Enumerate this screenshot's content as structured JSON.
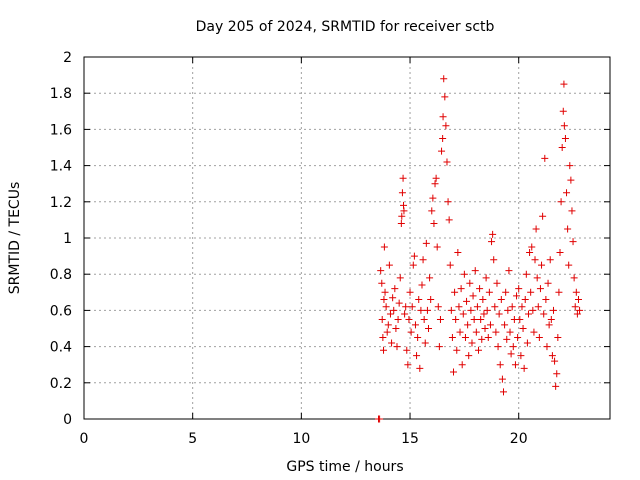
{
  "chart_data": {
    "type": "scatter",
    "title": "Day 205 of 2024, SRMTID for receiver sctb",
    "xlabel": "GPS time / hours",
    "ylabel": "SRMTID / TECUs",
    "xlim": [
      0,
      24.2
    ],
    "ylim": [
      0,
      2
    ],
    "xticks": [
      0,
      5,
      10,
      15,
      20
    ],
    "yticks": [
      0,
      0.2,
      0.4,
      0.6,
      0.8,
      1,
      1.2,
      1.4,
      1.6,
      1.8,
      2
    ],
    "xtick_labels": [
      "0",
      "5",
      "10",
      "15",
      "20"
    ],
    "ytick_labels": [
      "0",
      "0.2",
      "0.4",
      "0.6",
      "0.8",
      "1",
      "1.2",
      "1.4",
      "1.6",
      "1.8",
      "2"
    ],
    "grid": true,
    "marker": "+",
    "series": [
      {
        "name": "SRMTID sctb",
        "color": "#e00000",
        "points": [
          [
            13.55,
            0.0
          ],
          [
            13.6,
            0.0
          ],
          [
            13.65,
            0.82
          ],
          [
            13.7,
            0.75
          ],
          [
            13.72,
            0.55
          ],
          [
            13.75,
            0.45
          ],
          [
            13.78,
            0.38
          ],
          [
            13.8,
            0.66
          ],
          [
            13.82,
            0.95
          ],
          [
            13.85,
            0.7
          ],
          [
            13.9,
            0.62
          ],
          [
            13.95,
            0.48
          ],
          [
            14.0,
            0.52
          ],
          [
            14.05,
            0.85
          ],
          [
            14.1,
            0.58
          ],
          [
            14.15,
            0.42
          ],
          [
            14.2,
            0.67
          ],
          [
            14.25,
            0.6
          ],
          [
            14.3,
            0.72
          ],
          [
            14.35,
            0.5
          ],
          [
            14.4,
            0.4
          ],
          [
            14.45,
            0.55
          ],
          [
            14.5,
            0.64
          ],
          [
            14.55,
            0.78
          ],
          [
            14.6,
            1.08
          ],
          [
            14.62,
            1.12
          ],
          [
            14.65,
            1.25
          ],
          [
            14.68,
            1.33
          ],
          [
            14.7,
            1.18
          ],
          [
            14.72,
            1.15
          ],
          [
            14.75,
            0.58
          ],
          [
            14.8,
            0.62
          ],
          [
            14.85,
            0.38
          ],
          [
            14.9,
            0.3
          ],
          [
            14.95,
            0.55
          ],
          [
            15.0,
            0.7
          ],
          [
            15.05,
            0.48
          ],
          [
            15.1,
            0.62
          ],
          [
            15.15,
            0.85
          ],
          [
            15.2,
            0.9
          ],
          [
            15.25,
            0.52
          ],
          [
            15.3,
            0.35
          ],
          [
            15.35,
            0.45
          ],
          [
            15.4,
            0.66
          ],
          [
            15.45,
            0.28
          ],
          [
            15.5,
            0.6
          ],
          [
            15.55,
            0.74
          ],
          [
            15.6,
            0.88
          ],
          [
            15.65,
            0.55
          ],
          [
            15.7,
            0.42
          ],
          [
            15.75,
            0.97
          ],
          [
            15.8,
            0.6
          ],
          [
            15.85,
            0.5
          ],
          [
            15.9,
            0.78
          ],
          [
            15.95,
            0.66
          ],
          [
            16.0,
            1.15
          ],
          [
            16.05,
            1.22
          ],
          [
            16.1,
            1.08
          ],
          [
            16.15,
            1.3
          ],
          [
            16.2,
            1.33
          ],
          [
            16.25,
            0.95
          ],
          [
            16.3,
            0.62
          ],
          [
            16.35,
            0.4
          ],
          [
            16.4,
            0.55
          ],
          [
            16.45,
            1.48
          ],
          [
            16.5,
            1.55
          ],
          [
            16.52,
            1.67
          ],
          [
            16.55,
            1.88
          ],
          [
            16.6,
            1.78
          ],
          [
            16.65,
            1.62
          ],
          [
            16.7,
            1.42
          ],
          [
            16.75,
            1.2
          ],
          [
            16.8,
            1.1
          ],
          [
            16.85,
            0.85
          ],
          [
            16.9,
            0.6
          ],
          [
            16.95,
            0.45
          ],
          [
            17.0,
            0.26
          ],
          [
            17.05,
            0.7
          ],
          [
            17.1,
            0.55
          ],
          [
            17.15,
            0.38
          ],
          [
            17.2,
            0.92
          ],
          [
            17.25,
            0.62
          ],
          [
            17.3,
            0.48
          ],
          [
            17.35,
            0.72
          ],
          [
            17.4,
            0.3
          ],
          [
            17.45,
            0.58
          ],
          [
            17.5,
            0.8
          ],
          [
            17.55,
            0.45
          ],
          [
            17.6,
            0.65
          ],
          [
            17.65,
            0.52
          ],
          [
            17.7,
            0.35
          ],
          [
            17.75,
            0.75
          ],
          [
            17.8,
            0.6
          ],
          [
            17.85,
            0.42
          ],
          [
            17.9,
            0.68
          ],
          [
            17.95,
            0.55
          ],
          [
            18.0,
            0.82
          ],
          [
            18.05,
            0.48
          ],
          [
            18.1,
            0.62
          ],
          [
            18.15,
            0.38
          ],
          [
            18.2,
            0.72
          ],
          [
            18.25,
            0.55
          ],
          [
            18.3,
            0.44
          ],
          [
            18.35,
            0.66
          ],
          [
            18.4,
            0.58
          ],
          [
            18.45,
            0.5
          ],
          [
            18.5,
            0.78
          ],
          [
            18.55,
            0.6
          ],
          [
            18.6,
            0.45
          ],
          [
            18.65,
            0.7
          ],
          [
            18.7,
            0.52
          ],
          [
            18.75,
            0.98
          ],
          [
            18.8,
            1.02
          ],
          [
            18.85,
            0.88
          ],
          [
            18.9,
            0.62
          ],
          [
            18.95,
            0.48
          ],
          [
            19.0,
            0.75
          ],
          [
            19.05,
            0.4
          ],
          [
            19.1,
            0.58
          ],
          [
            19.15,
            0.3
          ],
          [
            19.2,
            0.66
          ],
          [
            19.25,
            0.22
          ],
          [
            19.3,
            0.15
          ],
          [
            19.35,
            0.52
          ],
          [
            19.4,
            0.7
          ],
          [
            19.45,
            0.44
          ],
          [
            19.5,
            0.6
          ],
          [
            19.55,
            0.82
          ],
          [
            19.6,
            0.48
          ],
          [
            19.65,
            0.36
          ],
          [
            19.7,
            0.62
          ],
          [
            19.75,
            0.4
          ],
          [
            19.8,
            0.55
          ],
          [
            19.85,
            0.3
          ],
          [
            19.9,
            0.68
          ],
          [
            19.95,
            0.45
          ],
          [
            20.0,
            0.72
          ],
          [
            20.05,
            0.55
          ],
          [
            20.1,
            0.35
          ],
          [
            20.15,
            0.62
          ],
          [
            20.2,
            0.5
          ],
          [
            20.25,
            0.28
          ],
          [
            20.3,
            0.66
          ],
          [
            20.35,
            0.8
          ],
          [
            20.4,
            0.42
          ],
          [
            20.45,
            0.58
          ],
          [
            20.5,
            0.92
          ],
          [
            20.55,
            0.7
          ],
          [
            20.6,
            0.95
          ],
          [
            20.65,
            0.6
          ],
          [
            20.7,
            0.48
          ],
          [
            20.75,
            0.88
          ],
          [
            20.8,
            1.05
          ],
          [
            20.85,
            0.78
          ],
          [
            20.9,
            0.62
          ],
          [
            20.95,
            0.45
          ],
          [
            21.0,
            0.72
          ],
          [
            21.05,
            0.85
          ],
          [
            21.1,
            1.12
          ],
          [
            21.15,
            0.58
          ],
          [
            21.2,
            1.44
          ],
          [
            21.25,
            0.66
          ],
          [
            21.3,
            0.4
          ],
          [
            21.35,
            0.75
          ],
          [
            21.4,
            0.52
          ],
          [
            21.45,
            0.88
          ],
          [
            21.5,
            0.55
          ],
          [
            21.55,
            0.35
          ],
          [
            21.6,
            0.6
          ],
          [
            21.65,
            0.32
          ],
          [
            21.7,
            0.18
          ],
          [
            21.75,
            0.25
          ],
          [
            21.8,
            0.45
          ],
          [
            21.85,
            0.7
          ],
          [
            21.9,
            0.92
          ],
          [
            21.95,
            1.2
          ],
          [
            22.0,
            1.5
          ],
          [
            22.05,
            1.7
          ],
          [
            22.08,
            1.85
          ],
          [
            22.1,
            1.62
          ],
          [
            22.15,
            1.55
          ],
          [
            22.2,
            1.25
          ],
          [
            22.25,
            1.05
          ],
          [
            22.3,
            0.85
          ],
          [
            22.35,
            1.4
          ],
          [
            22.4,
            1.32
          ],
          [
            22.45,
            1.15
          ],
          [
            22.5,
            0.98
          ],
          [
            22.55,
            0.78
          ],
          [
            22.6,
            0.62
          ],
          [
            22.65,
            0.7
          ],
          [
            22.7,
            0.58
          ],
          [
            22.75,
            0.66
          ],
          [
            22.8,
            0.6
          ]
        ]
      }
    ]
  }
}
